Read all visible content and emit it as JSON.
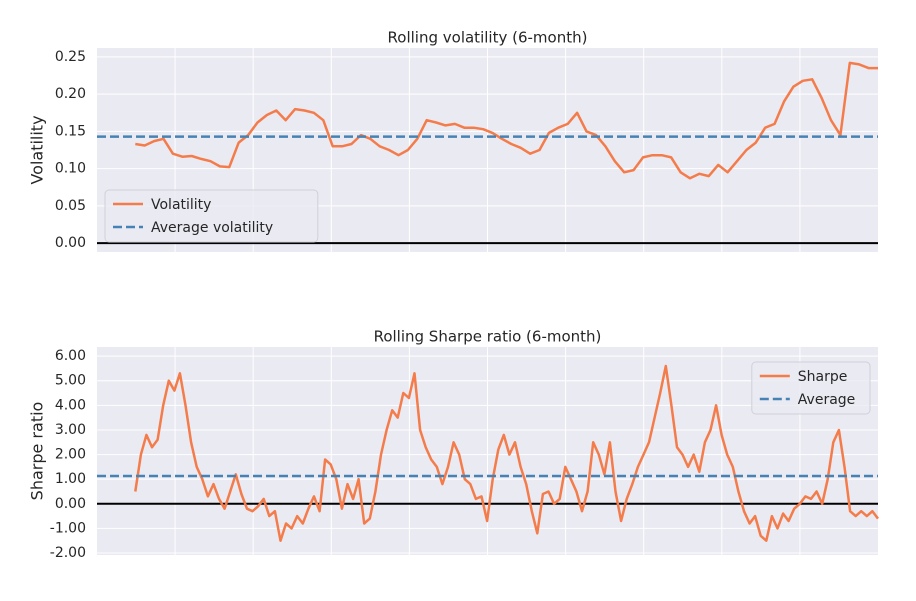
{
  "chart_data": [
    {
      "type": "line",
      "title": "Rolling volatility (6-month)",
      "ylabel": "Volatility",
      "ylim": [
        -0.012,
        0.262
      ],
      "yticks": [
        {
          "value": 0,
          "label": "0.00"
        },
        {
          "value": 0.05,
          "label": "0.05"
        },
        {
          "value": 0.1,
          "label": "0.10"
        },
        {
          "value": 0.15,
          "label": "0.15"
        },
        {
          "value": 0.2,
          "label": "0.20"
        },
        {
          "value": 0.25,
          "label": "0.25"
        }
      ],
      "grid": true,
      "legend": "lower left",
      "series": [
        {
          "name": "Volatility",
          "color": "#f47c4b",
          "values": [
            0.133,
            0.131,
            0.137,
            0.14,
            0.12,
            0.116,
            0.117,
            0.113,
            0.11,
            0.103,
            0.102,
            0.135,
            0.145,
            0.162,
            0.172,
            0.178,
            0.165,
            0.18,
            0.178,
            0.175,
            0.165,
            0.13,
            0.13,
            0.133,
            0.145,
            0.14,
            0.13,
            0.125,
            0.118,
            0.125,
            0.14,
            0.165,
            0.162,
            0.158,
            0.16,
            0.155,
            0.155,
            0.153,
            0.148,
            0.14,
            0.133,
            0.128,
            0.12,
            0.125,
            0.148,
            0.155,
            0.16,
            0.175,
            0.15,
            0.145,
            0.13,
            0.11,
            0.095,
            0.098,
            0.115,
            0.118,
            0.118,
            0.115,
            0.095,
            0.087,
            0.093,
            0.09,
            0.105,
            0.095,
            0.11,
            0.125,
            0.135,
            0.155,
            0.16,
            0.19,
            0.21,
            0.218,
            0.22,
            0.195,
            0.165,
            0.145,
            0.242,
            0.24,
            0.235,
            0.235
          ]
        },
        {
          "name": "Average volatility",
          "color": "#4682b4",
          "dashed": true,
          "value": 0.143
        }
      ]
    },
    {
      "type": "line",
      "title": "Rolling Sharpe ratio (6-month)",
      "ylabel": "Sharpe ratio",
      "ylim": [
        -2.08,
        6.37
      ],
      "yticks": [
        {
          "value": -2,
          "label": "-2.00"
        },
        {
          "value": -1,
          "label": "-1.00"
        },
        {
          "value": 0,
          "label": "0.00"
        },
        {
          "value": 1,
          "label": "1.00"
        },
        {
          "value": 2,
          "label": "2.00"
        },
        {
          "value": 3,
          "label": "3.00"
        },
        {
          "value": 4,
          "label": "4.00"
        },
        {
          "value": 5,
          "label": "5.00"
        },
        {
          "value": 6,
          "label": "6.00"
        }
      ],
      "grid": true,
      "legend": "upper right",
      "series": [
        {
          "name": "Sharpe",
          "color": "#f47c4b",
          "values": [
            0.5,
            2.0,
            2.8,
            2.3,
            2.6,
            4.0,
            5.0,
            4.6,
            5.3,
            4.0,
            2.5,
            1.5,
            1.0,
            0.3,
            0.8,
            0.2,
            -0.2,
            0.5,
            1.2,
            0.4,
            -0.2,
            -0.3,
            -0.1,
            0.2,
            -0.5,
            -0.3,
            -1.5,
            -0.8,
            -1.0,
            -0.5,
            -0.8,
            -0.2,
            0.3,
            -0.3,
            1.8,
            1.6,
            1.0,
            -0.2,
            0.8,
            0.2,
            1.0,
            -0.8,
            -0.6,
            0.5,
            2.0,
            3.0,
            3.8,
            3.5,
            4.5,
            4.3,
            5.3,
            3.0,
            2.3,
            1.8,
            1.5,
            0.8,
            1.5,
            2.5,
            2.0,
            1.0,
            0.8,
            0.2,
            0.3,
            -0.7,
            1.0,
            2.2,
            2.8,
            2.0,
            2.5,
            1.5,
            0.8,
            -0.3,
            -1.2,
            0.4,
            0.5,
            0.0,
            0.2,
            1.5,
            1.0,
            0.5,
            -0.3,
            0.5,
            2.5,
            2.0,
            1.2,
            2.5,
            0.5,
            -0.7,
            0.2,
            0.8,
            1.5,
            2.0,
            2.5,
            3.5,
            4.5,
            5.6,
            4.0,
            2.3,
            2.0,
            1.5,
            2.0,
            1.3,
            2.5,
            3.0,
            4.0,
            2.8,
            2.0,
            1.5,
            0.5,
            -0.3,
            -0.8,
            -0.5,
            -1.3,
            -1.5,
            -0.5,
            -1.0,
            -0.4,
            -0.7,
            -0.2,
            0.0,
            0.3,
            0.2,
            0.5,
            0.0,
            1.0,
            2.5,
            3.0,
            1.5,
            -0.3,
            -0.5,
            -0.3,
            -0.5,
            -0.3,
            -0.6
          ]
        },
        {
          "name": "Average",
          "color": "#4682b4",
          "dashed": true,
          "value": 1.13
        }
      ]
    }
  ]
}
